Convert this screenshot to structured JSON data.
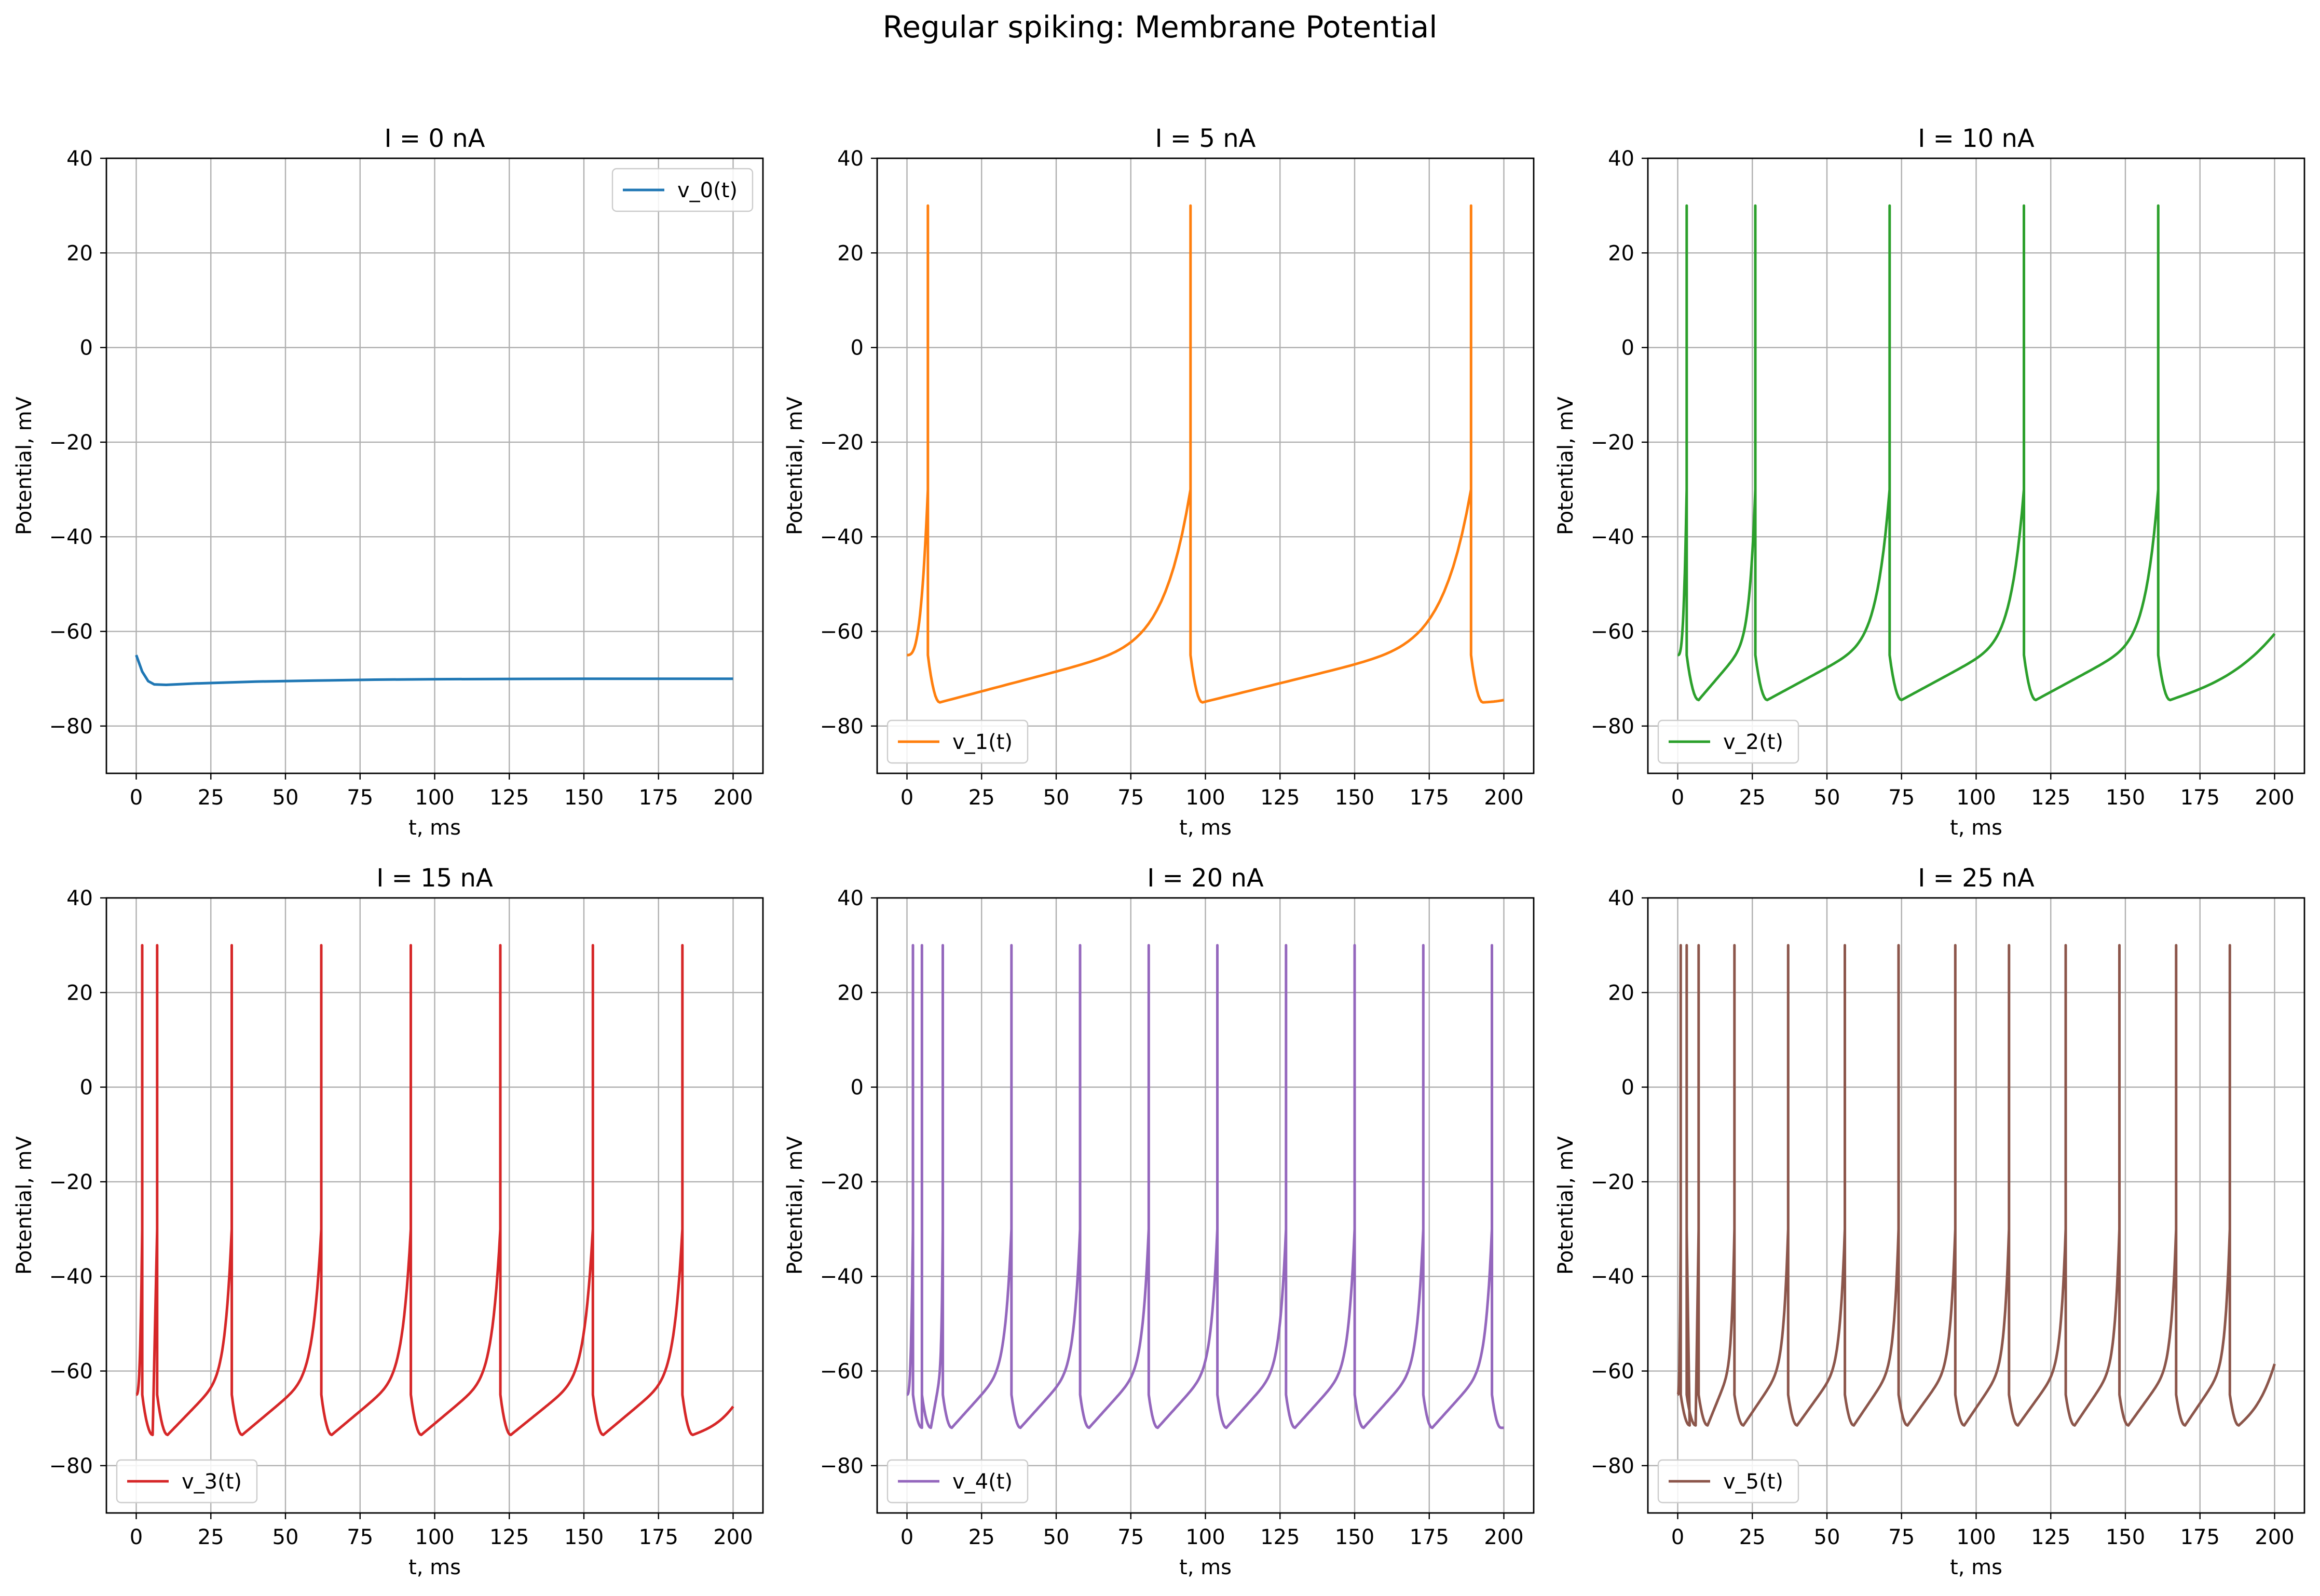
{
  "figure": {
    "suptitle": "Regular spiking: Membrane Potential"
  },
  "chart_data": [
    {
      "type": "line",
      "title": "I = 0 nA",
      "xlabel": "t, ms",
      "ylabel": "Potential, mV",
      "xlim": [
        -10,
        210
      ],
      "ylim": [
        -90,
        40
      ],
      "xticks": [
        0,
        25,
        50,
        75,
        100,
        125,
        150,
        175,
        200
      ],
      "yticks": [
        -80,
        -60,
        -40,
        -20,
        0,
        20,
        40
      ],
      "grid": true,
      "legend_position": "upper right",
      "series": [
        {
          "name": "v_0(t)",
          "color": "#1f77b4",
          "kind": "rest",
          "points": [
            [
              0,
              -65
            ],
            [
              2,
              -68.5
            ],
            [
              4,
              -70.5
            ],
            [
              6,
              -71.2
            ],
            [
              10,
              -71.3
            ],
            [
              20,
              -71.0
            ],
            [
              40,
              -70.6
            ],
            [
              60,
              -70.4
            ],
            [
              80,
              -70.2
            ],
            [
              100,
              -70.1
            ],
            [
              150,
              -70.0
            ],
            [
              200,
              -70.0
            ]
          ]
        }
      ]
    },
    {
      "type": "line",
      "title": "I = 5 nA",
      "xlabel": "t, ms",
      "ylabel": "Potential, mV",
      "xlim": [
        -10,
        210
      ],
      "ylim": [
        -90,
        40
      ],
      "xticks": [
        0,
        25,
        50,
        75,
        100,
        125,
        150,
        175,
        200
      ],
      "yticks": [
        -80,
        -60,
        -40,
        -20,
        0,
        20,
        40
      ],
      "grid": true,
      "legend_position": "lower left",
      "series": [
        {
          "name": "v_1(t)",
          "color": "#ff7f0e",
          "kind": "spiking",
          "start_v": -65,
          "reset_v": -65,
          "peak_v": 30,
          "trough_v": -75,
          "trough_delay": 4,
          "spike_times": [
            7,
            95,
            189
          ],
          "end_t": 200,
          "end_v": -74.5
        }
      ]
    },
    {
      "type": "line",
      "title": "I = 10 nA",
      "xlabel": "t, ms",
      "ylabel": "Potential, mV",
      "xlim": [
        -10,
        210
      ],
      "ylim": [
        -90,
        40
      ],
      "xticks": [
        0,
        25,
        50,
        75,
        100,
        125,
        150,
        175,
        200
      ],
      "yticks": [
        -80,
        -60,
        -40,
        -20,
        0,
        20,
        40
      ],
      "grid": true,
      "legend_position": "lower left",
      "series": [
        {
          "name": "v_2(t)",
          "color": "#2ca02c",
          "kind": "spiking",
          "start_v": -65,
          "reset_v": -65,
          "peak_v": 30,
          "trough_v": -74.5,
          "trough_delay": 4,
          "spike_times": [
            3,
            26,
            71,
            116,
            161
          ],
          "end_t": 200,
          "end_v": -60.5
        }
      ]
    },
    {
      "type": "line",
      "title": "I = 15 nA",
      "xlabel": "t, ms",
      "ylabel": "Potential, mV",
      "xlim": [
        -10,
        210
      ],
      "ylim": [
        -90,
        40
      ],
      "xticks": [
        0,
        25,
        50,
        75,
        100,
        125,
        150,
        175,
        200
      ],
      "yticks": [
        -80,
        -60,
        -40,
        -20,
        0,
        20,
        40
      ],
      "grid": true,
      "legend_position": "lower left",
      "series": [
        {
          "name": "v_3(t)",
          "color": "#d62728",
          "kind": "spiking",
          "start_v": -65,
          "reset_v": -65,
          "peak_v": 30,
          "trough_v": -73.5,
          "trough_delay": 3.5,
          "spike_times": [
            2,
            7,
            32,
            62,
            92,
            122,
            153,
            183
          ],
          "end_t": 200,
          "end_v": -67.5
        }
      ]
    },
    {
      "type": "line",
      "title": "I = 20 nA",
      "xlabel": "t, ms",
      "ylabel": "Potential, mV",
      "xlim": [
        -10,
        210
      ],
      "ylim": [
        -90,
        40
      ],
      "xticks": [
        0,
        25,
        50,
        75,
        100,
        125,
        150,
        175,
        200
      ],
      "yticks": [
        -80,
        -60,
        -40,
        -20,
        0,
        20,
        40
      ],
      "grid": true,
      "legend_position": "lower left",
      "series": [
        {
          "name": "v_4(t)",
          "color": "#9467bd",
          "kind": "spiking",
          "start_v": -65,
          "reset_v": -65,
          "peak_v": 30,
          "trough_v": -72,
          "trough_delay": 3,
          "spike_times": [
            2,
            5,
            12,
            35,
            58,
            81,
            104,
            127,
            150,
            173,
            196
          ],
          "end_t": 200,
          "end_v": -72
        }
      ]
    },
    {
      "type": "line",
      "title": "I = 25 nA",
      "xlabel": "t, ms",
      "ylabel": "Potential, mV",
      "xlim": [
        -10,
        210
      ],
      "ylim": [
        -90,
        40
      ],
      "xticks": [
        0,
        25,
        50,
        75,
        100,
        125,
        150,
        175,
        200
      ],
      "yticks": [
        -80,
        -60,
        -40,
        -20,
        0,
        20,
        40
      ],
      "grid": true,
      "legend_position": "lower left",
      "series": [
        {
          "name": "v_5(t)",
          "color": "#8c564b",
          "kind": "spiking",
          "start_v": -65,
          "reset_v": -65,
          "peak_v": 30,
          "trough_v": -71.5,
          "trough_delay": 3,
          "spike_times": [
            1,
            3,
            7,
            19,
            37,
            56,
            74,
            93,
            111,
            130,
            148,
            167,
            185
          ],
          "end_t": 200,
          "end_v": -58.5
        }
      ]
    }
  ]
}
